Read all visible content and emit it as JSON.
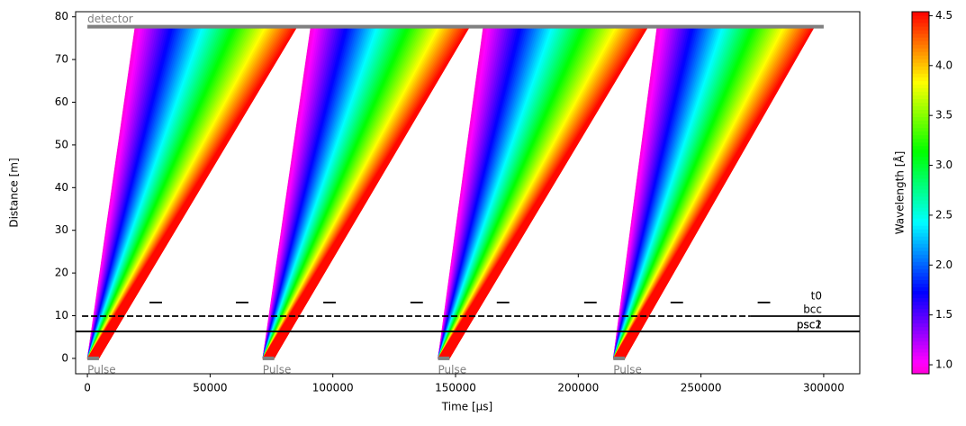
{
  "chart_data": {
    "type": "time-distance",
    "x_label": "Time [µs]",
    "y_label": "Distance [m]",
    "colorbar_label": "Wavelength [Å]",
    "colormap": "hsv",
    "xlim": [
      -4800,
      314700
    ],
    "xticks": [
      0,
      50000,
      100000,
      150000,
      200000,
      250000,
      300000
    ],
    "ylim": [
      -3.6,
      81.2
    ],
    "yticks": [
      0,
      10,
      20,
      30,
      40,
      50,
      60,
      70,
      80
    ],
    "clim": [
      0.91,
      4.54
    ],
    "cticks": [
      {
        "value": 1.0,
        "label": "1.0"
      },
      {
        "value": 1.5,
        "label": "1.5"
      },
      {
        "value": 2.0,
        "label": "2.0"
      },
      {
        "value": 2.5,
        "label": "2.5"
      },
      {
        "value": 3.0,
        "label": "3.0"
      },
      {
        "value": 3.5,
        "label": "3.5"
      },
      {
        "value": 4.0,
        "label": "4.0"
      },
      {
        "value": 4.5,
        "label": "4.5"
      }
    ],
    "detector": {
      "label": "detector",
      "distance": 77.7,
      "range": [
        0,
        300000
      ]
    },
    "pulses": [
      {
        "label": "Pulse",
        "start": 0,
        "end": 4700,
        "arrival": [
          19400,
          85500
        ]
      },
      {
        "label": "Pulse",
        "start": 71429,
        "end": 76129,
        "arrival": [
          91000,
          155800
        ]
      },
      {
        "label": "Pulse",
        "start": 142857,
        "end": 147557,
        "arrival": [
          161300,
          228500
        ]
      },
      {
        "label": "Pulse",
        "start": 214286,
        "end": 218986,
        "arrival": [
          232100,
          296300
        ]
      }
    ],
    "choppers": [
      {
        "label": "t0",
        "distance": 13.1,
        "style": "solid",
        "closed": [
          [
            25300,
            30400
          ],
          [
            60500,
            65600
          ],
          [
            96100,
            101200
          ],
          [
            131600,
            136700
          ],
          [
            166800,
            171900
          ],
          [
            202400,
            207500
          ],
          [
            237600,
            242700
          ],
          [
            273100,
            278200
          ]
        ]
      },
      {
        "label": "bcc",
        "distance": 9.9,
        "style": "dashed",
        "closed": [
          [
            -2200,
            270000
          ]
        ]
      },
      {
        "label": "bcc",
        "distance": 9.9,
        "style": "solid",
        "closed": [
          [
            270000,
            314700
          ]
        ]
      },
      {
        "label": "psc1",
        "distance": 6.3,
        "style": "solid",
        "closed": [
          [
            -4800,
            314700
          ]
        ]
      },
      {
        "label": "psc2",
        "distance": 6.3,
        "style": "solid",
        "closed": [
          [
            -4800,
            314700
          ]
        ]
      }
    ]
  }
}
